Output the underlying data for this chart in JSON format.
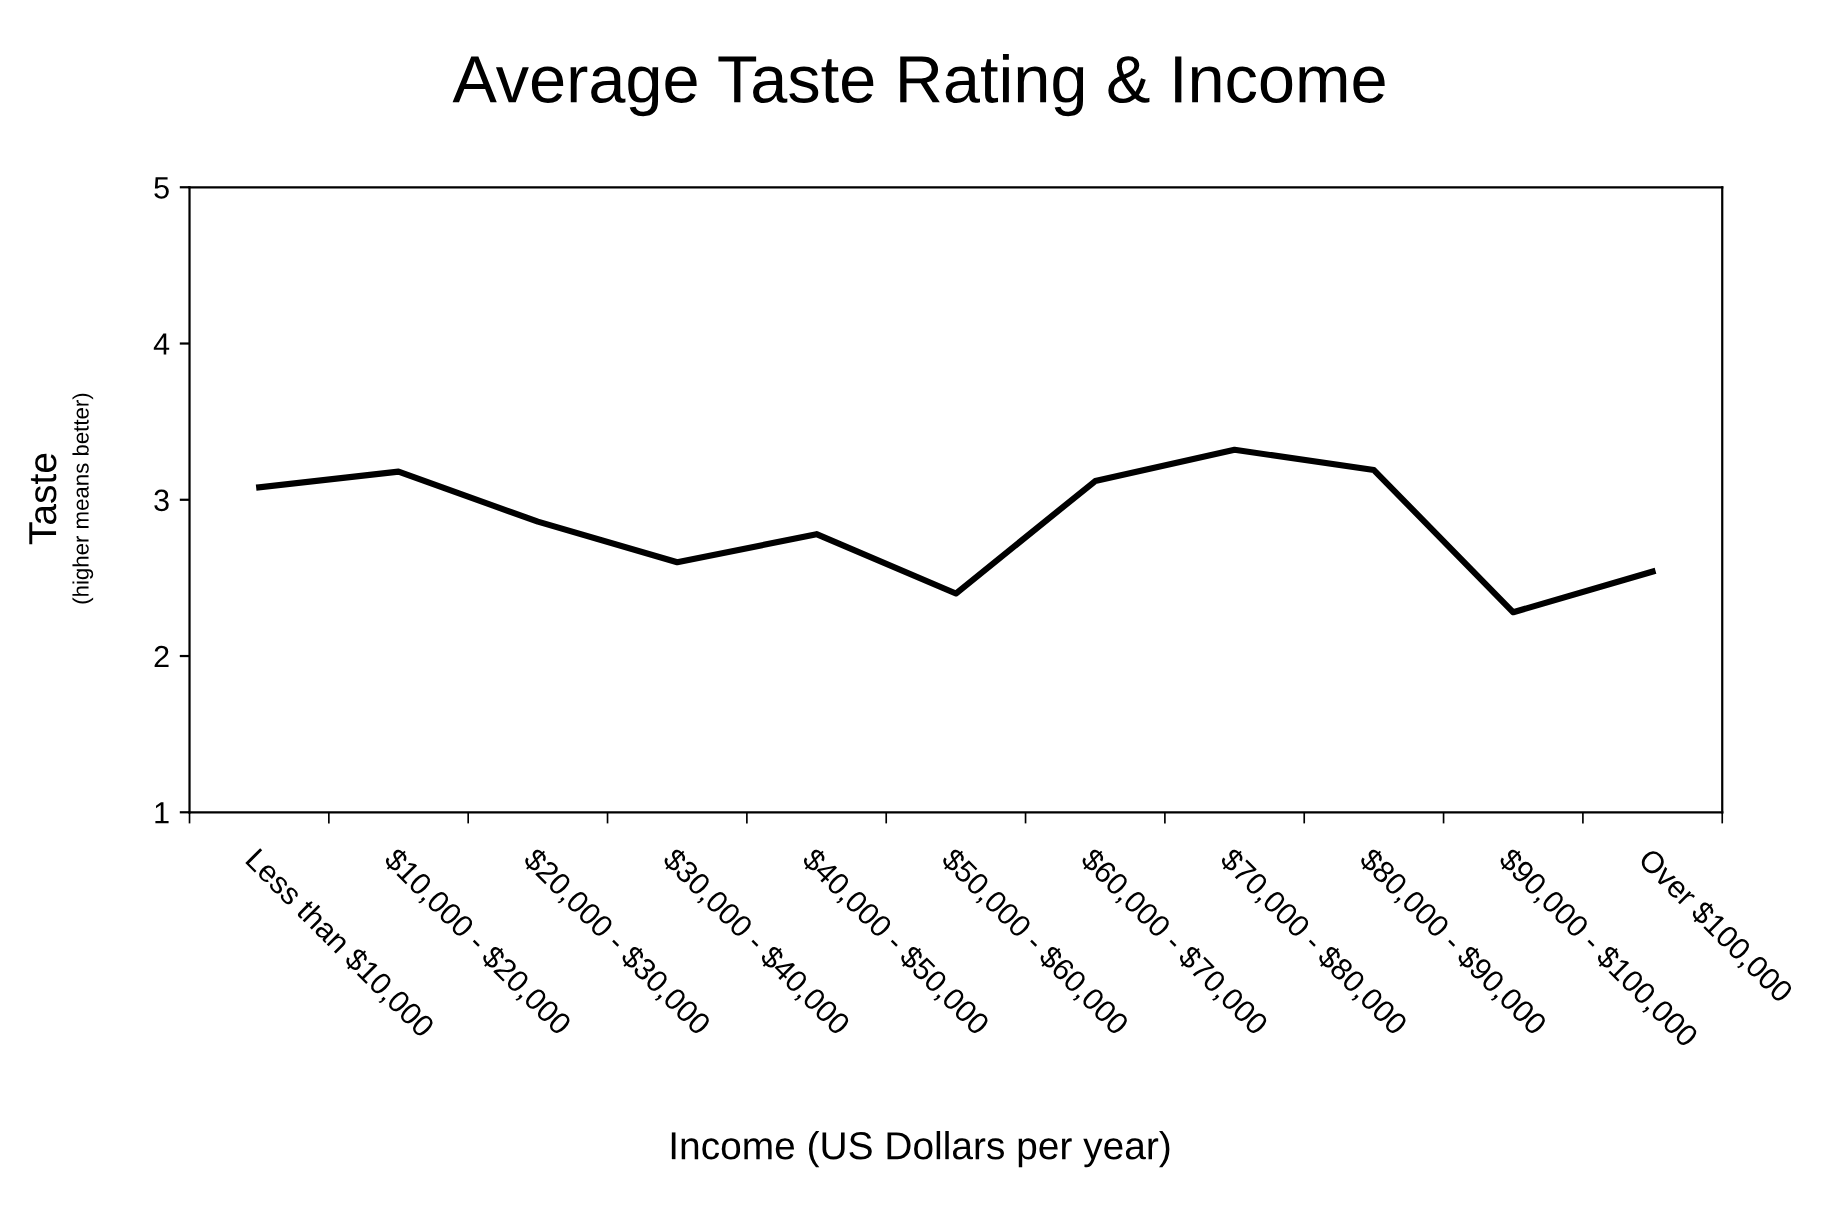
{
  "chart_data": {
    "type": "line",
    "title": "Average Taste Rating & Income",
    "xlabel": "Income (US Dollars per year)",
    "ylabel": "Taste",
    "subtitle": "(higher means better)",
    "categories": [
      "Less than $10,000",
      "$10,000 - $20,000",
      "$20,000 - $30,000",
      "$30,000 - $40,000",
      "$40,000 - $50,000",
      "$50,000 - $60,000",
      "$60,000 - $70,000",
      "$70,000 - $80,000",
      "$80,000 - $90,000",
      "$90,000 - $100,000",
      "Over $100,000"
    ],
    "series": [
      {
        "color": "#000000",
        "values": [
          3.08,
          3.18,
          2.86,
          2.6,
          2.78,
          2.4,
          3.12,
          3.32,
          3.19,
          2.28,
          2.54
        ]
      }
    ],
    "ylim": [
      1,
      5
    ],
    "yticks": [
      1,
      2,
      3,
      4,
      5
    ],
    "grid": false,
    "legend": false,
    "marker": "none",
    "line_style": "solid"
  }
}
